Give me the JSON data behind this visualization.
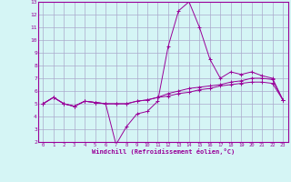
{
  "xlabel": "Windchill (Refroidissement éolien,°C)",
  "hours": [
    0,
    1,
    2,
    3,
    4,
    5,
    6,
    7,
    8,
    9,
    10,
    11,
    12,
    13,
    14,
    15,
    16,
    17,
    18,
    19,
    20,
    21,
    22,
    23
  ],
  "line1": [
    5.0,
    5.5,
    5.0,
    4.8,
    5.2,
    5.1,
    5.0,
    1.8,
    3.2,
    4.2,
    4.4,
    5.2,
    9.5,
    12.3,
    13.0,
    11.0,
    8.5,
    7.0,
    7.5,
    7.3,
    7.5,
    7.2,
    7.0,
    5.3
  ],
  "line2": [
    5.0,
    5.5,
    5.0,
    4.8,
    5.2,
    5.1,
    5.0,
    5.0,
    5.0,
    5.2,
    5.3,
    5.5,
    5.8,
    6.0,
    6.2,
    6.3,
    6.4,
    6.5,
    6.7,
    6.8,
    7.0,
    7.0,
    6.9,
    5.3
  ],
  "line3": [
    5.0,
    5.5,
    5.0,
    4.8,
    5.2,
    5.1,
    5.0,
    5.0,
    5.0,
    5.2,
    5.3,
    5.5,
    5.6,
    5.8,
    5.9,
    6.1,
    6.2,
    6.4,
    6.5,
    6.6,
    6.7,
    6.7,
    6.6,
    5.3
  ],
  "line_color": "#990099",
  "bg_color": "#d5f5f5",
  "grid_color": "#aaaacc",
  "ylim": [
    2,
    13
  ],
  "yticks": [
    2,
    3,
    4,
    5,
    6,
    7,
    8,
    9,
    10,
    11,
    12,
    13
  ]
}
